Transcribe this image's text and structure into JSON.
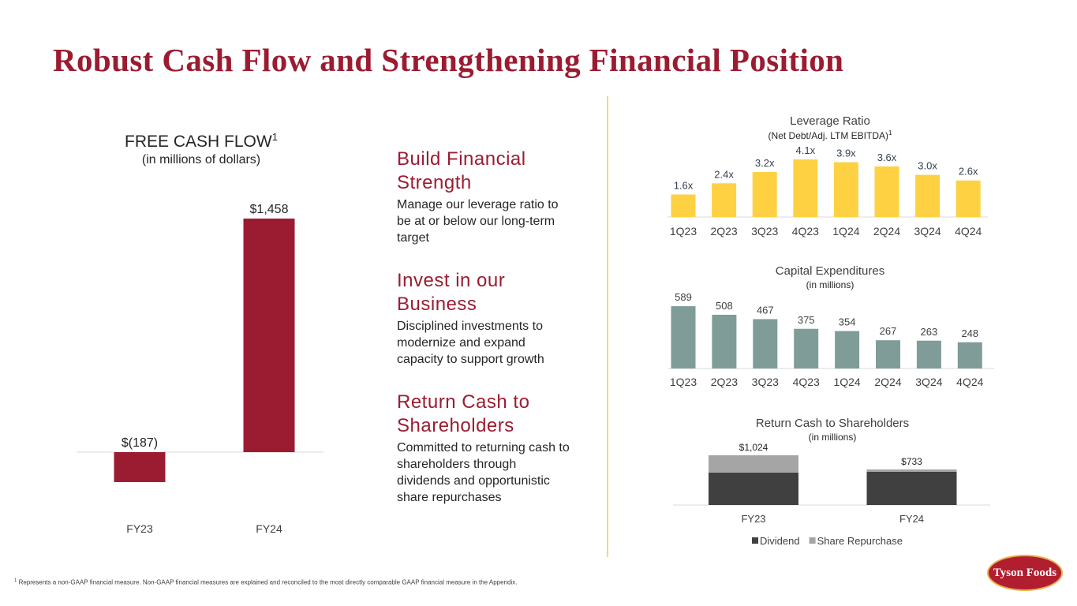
{
  "title": "Robust Cash Flow and Strengthening Financial Position",
  "sections": [
    {
      "heading": "Build Financial Strength",
      "body": "Manage our leverage ratio to be at or below our long-term target"
    },
    {
      "heading": "Invest in our Business",
      "body": "Disciplined investments to modernize and expand capacity to support growth"
    },
    {
      "heading": "Return Cash to Shareholders",
      "body": "Committed to returning cash to shareholders through dividends and opportunistic share repurchases"
    }
  ],
  "footnote": {
    "marker": "1",
    "text": "Represents a non-GAAP financial measure. Non-GAAP financial measures are explained and reconciled to the most directly comparable GAAP financial measure in the Appendix."
  },
  "logo": "Tyson Foods",
  "chart_data": [
    {
      "type": "bar",
      "title": "FREE CASH FLOW",
      "title_note": "1",
      "subtitle": "(in millions of dollars)",
      "categories": [
        "FY23",
        "FY24"
      ],
      "values": [
        -187,
        1458
      ],
      "value_labels": [
        "$(187)",
        "$1,458"
      ],
      "color": "#9b1c31"
    },
    {
      "type": "bar",
      "title": "Leverage Ratio",
      "subtitle": "(Net Debt/Adj. LTM EBITDA)",
      "subtitle_note": "1",
      "categories": [
        "1Q23",
        "2Q23",
        "3Q23",
        "4Q23",
        "1Q24",
        "2Q24",
        "3Q24",
        "4Q24"
      ],
      "values": [
        1.6,
        2.4,
        3.2,
        4.1,
        3.9,
        3.6,
        3.0,
        2.6
      ],
      "value_labels": [
        "1.6x",
        "2.4x",
        "3.2x",
        "4.1x",
        "3.9x",
        "3.6x",
        "3.0x",
        "2.6x"
      ],
      "color": "#fdd142"
    },
    {
      "type": "bar",
      "title": "Capital Expenditures",
      "subtitle": "(in millions)",
      "categories": [
        "1Q23",
        "2Q23",
        "3Q23",
        "4Q23",
        "1Q24",
        "2Q24",
        "3Q24",
        "4Q24"
      ],
      "values": [
        589,
        508,
        467,
        375,
        354,
        267,
        263,
        248
      ],
      "color": "#7f9c98"
    },
    {
      "type": "stacked_bar",
      "title": "Return Cash to Shareholders",
      "subtitle": "(in millions)",
      "categories": [
        "FY23",
        "FY24"
      ],
      "series": [
        {
          "name": "Dividend",
          "color": "#404040",
          "values": [
            669,
            683
          ]
        },
        {
          "name": "Share Repurchase",
          "color": "#a5a5a5",
          "values": [
            355,
            50
          ]
        }
      ],
      "totals": [
        1024,
        733
      ],
      "total_labels": [
        "$1,024",
        "$733"
      ]
    }
  ]
}
